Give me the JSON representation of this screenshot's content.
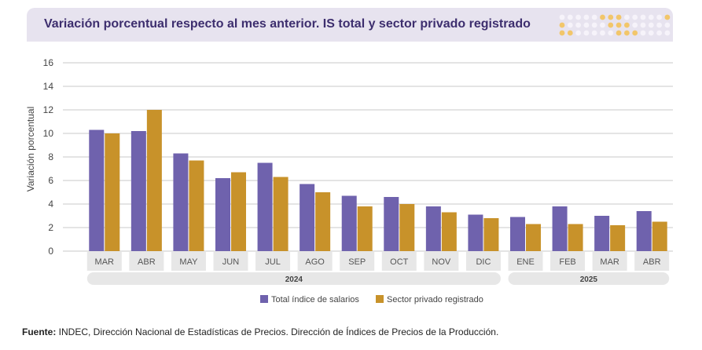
{
  "header": {
    "title": "Variación porcentual respecto al mes anterior. IS total y sector privado registrado"
  },
  "chart_data": {
    "type": "bar",
    "title": "Variación porcentual respecto al mes anterior. IS total y sector privado registrado",
    "ylabel": "Variación porcentual",
    "xlabel": "",
    "ylim": [
      0,
      16
    ],
    "yticks": [
      0,
      2,
      4,
      6,
      8,
      10,
      12,
      14,
      16
    ],
    "grid": true,
    "legend_position": "bottom-center",
    "categories": [
      "MAR",
      "ABR",
      "MAY",
      "JUN",
      "JUL",
      "AGO",
      "SEP",
      "OCT",
      "NOV",
      "DIC",
      "ENE",
      "FEB",
      "MAR",
      "ABR"
    ],
    "groups": [
      {
        "label": "2024",
        "start": 0,
        "end": 9
      },
      {
        "label": "2025",
        "start": 10,
        "end": 13
      }
    ],
    "series": [
      {
        "name": "Total índice de salarios",
        "color": "#6f62ad",
        "values": [
          10.3,
          10.2,
          8.3,
          6.2,
          7.5,
          5.7,
          4.7,
          4.6,
          3.8,
          3.1,
          2.9,
          3.8,
          3.0,
          3.4
        ]
      },
      {
        "name": "Sector privado registrado",
        "color": "#c8922a",
        "values": [
          10.0,
          12.0,
          7.7,
          6.7,
          6.3,
          5.0,
          3.8,
          4.0,
          3.3,
          2.8,
          2.3,
          2.3,
          2.2,
          2.5
        ]
      }
    ]
  },
  "source": {
    "label": "Fuente:",
    "text": " INDEC, Dirección Nacional de Estadísticas de Precios. Dirección de Índices de Precios de la Producción."
  }
}
